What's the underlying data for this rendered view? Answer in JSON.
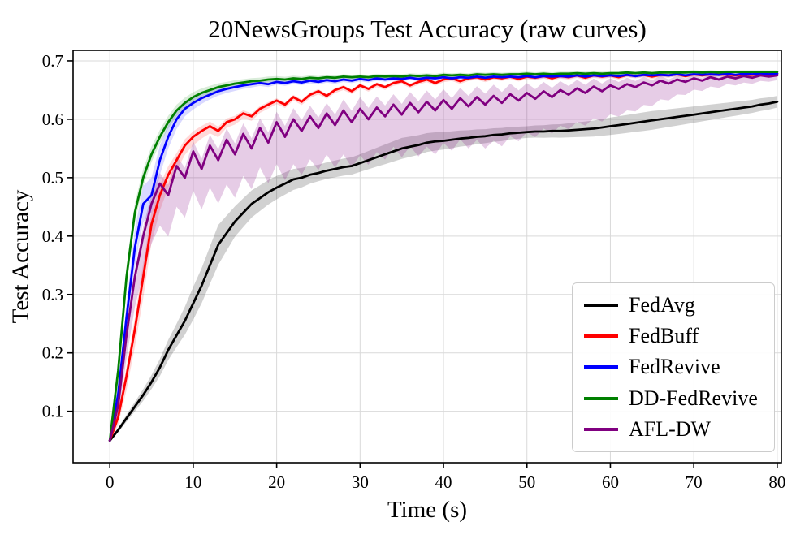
{
  "chart_data": {
    "type": "line",
    "title": "20NewsGroups Test Accuracy (raw curves)",
    "xlabel": "Time (s)",
    "ylabel": "Test Accuracy",
    "xlim": [
      -4.4,
      80.5
    ],
    "ylim": [
      0.012,
      0.718
    ],
    "x_ticks": [
      0,
      10,
      20,
      30,
      40,
      50,
      60,
      70,
      80
    ],
    "y_ticks": [
      0.1,
      0.2,
      0.3,
      0.4,
      0.5,
      0.6,
      0.7
    ],
    "grid": true,
    "legend_position": "lower right",
    "x": [
      0,
      1,
      2,
      3,
      4,
      5,
      6,
      7,
      8,
      9,
      10,
      11,
      12,
      13,
      14,
      15,
      16,
      17,
      18,
      19,
      20,
      21,
      22,
      23,
      24,
      25,
      26,
      27,
      28,
      29,
      30,
      31,
      32,
      33,
      34,
      35,
      36,
      37,
      38,
      39,
      40,
      41,
      42,
      43,
      44,
      45,
      46,
      47,
      48,
      49,
      50,
      51,
      52,
      53,
      54,
      55,
      56,
      57,
      58,
      59,
      60,
      61,
      62,
      63,
      64,
      65,
      66,
      67,
      68,
      69,
      70,
      71,
      72,
      73,
      74,
      75,
      76,
      77,
      78,
      79,
      80
    ],
    "series": [
      {
        "id": "fedavg",
        "name": "FedAvg",
        "color": "#000000",
        "band_opacity": 0.18,
        "band_down_frac": 0.5,
        "values": [
          0.05,
          0.068,
          0.088,
          0.108,
          0.128,
          0.15,
          0.175,
          0.205,
          0.23,
          0.255,
          0.285,
          0.315,
          0.35,
          0.385,
          0.405,
          0.425,
          0.44,
          0.455,
          0.465,
          0.475,
          0.483,
          0.49,
          0.497,
          0.5,
          0.505,
          0.508,
          0.512,
          0.515,
          0.518,
          0.52,
          0.525,
          0.53,
          0.535,
          0.54,
          0.545,
          0.55,
          0.553,
          0.556,
          0.56,
          0.562,
          0.563,
          0.565,
          0.567,
          0.568,
          0.57,
          0.571,
          0.573,
          0.574,
          0.576,
          0.577,
          0.578,
          0.579,
          0.579,
          0.58,
          0.58,
          0.581,
          0.582,
          0.583,
          0.584,
          0.586,
          0.588,
          0.59,
          0.592,
          0.594,
          0.596,
          0.598,
          0.6,
          0.602,
          0.604,
          0.606,
          0.608,
          0.61,
          0.612,
          0.614,
          0.616,
          0.618,
          0.62,
          0.622,
          0.625,
          0.627,
          0.63
        ],
        "band": [
          [
            0,
            0.002
          ],
          [
            5,
            0.012
          ],
          [
            8,
            0.02
          ],
          [
            10,
            0.028
          ],
          [
            13,
            0.034
          ],
          [
            15,
            0.026
          ],
          [
            18,
            0.022
          ],
          [
            22,
            0.018
          ],
          [
            25,
            0.014
          ],
          [
            30,
            0.015
          ],
          [
            35,
            0.018
          ],
          [
            40,
            0.015
          ],
          [
            45,
            0.012
          ],
          [
            50,
            0.01
          ],
          [
            55,
            0.012
          ],
          [
            60,
            0.015
          ],
          [
            65,
            0.016
          ],
          [
            70,
            0.014
          ],
          [
            75,
            0.012
          ],
          [
            80,
            0.01
          ]
        ]
      },
      {
        "id": "fedbuff",
        "name": "FedBuff",
        "color": "#ff0000",
        "band_opacity": 0.15,
        "band_down_frac": 0.6,
        "values": [
          0.05,
          0.09,
          0.16,
          0.24,
          0.33,
          0.42,
          0.47,
          0.505,
          0.53,
          0.555,
          0.57,
          0.58,
          0.588,
          0.58,
          0.595,
          0.6,
          0.61,
          0.605,
          0.618,
          0.625,
          0.632,
          0.625,
          0.638,
          0.63,
          0.642,
          0.648,
          0.64,
          0.65,
          0.655,
          0.648,
          0.658,
          0.652,
          0.66,
          0.655,
          0.662,
          0.665,
          0.658,
          0.664,
          0.668,
          0.662,
          0.668,
          0.67,
          0.665,
          0.67,
          0.672,
          0.668,
          0.672,
          0.67,
          0.673,
          0.669,
          0.673,
          0.671,
          0.674,
          0.67,
          0.674,
          0.672,
          0.675,
          0.671,
          0.675,
          0.673,
          0.675,
          0.672,
          0.676,
          0.674,
          0.676,
          0.673,
          0.676,
          0.675,
          0.677,
          0.674,
          0.677,
          0.675,
          0.677,
          0.676,
          0.677,
          0.675,
          0.677,
          0.676,
          0.678,
          0.677,
          0.678
        ],
        "band": [
          [
            0,
            0.002
          ],
          [
            2,
            0.02
          ],
          [
            4,
            0.03
          ],
          [
            6,
            0.022
          ],
          [
            8,
            0.015
          ],
          [
            10,
            0.012
          ],
          [
            14,
            0.008
          ],
          [
            20,
            0.005
          ],
          [
            30,
            0.004
          ],
          [
            80,
            0.003
          ]
        ]
      },
      {
        "id": "fedrevive",
        "name": "FedRevive",
        "color": "#0000ff",
        "band_opacity": 0.15,
        "band_down_frac": 0.5,
        "values": [
          0.05,
          0.13,
          0.26,
          0.38,
          0.455,
          0.47,
          0.53,
          0.57,
          0.6,
          0.618,
          0.628,
          0.636,
          0.642,
          0.648,
          0.652,
          0.655,
          0.658,
          0.66,
          0.662,
          0.66,
          0.664,
          0.662,
          0.665,
          0.663,
          0.666,
          0.664,
          0.667,
          0.665,
          0.668,
          0.666,
          0.669,
          0.667,
          0.67,
          0.668,
          0.67,
          0.669,
          0.671,
          0.669,
          0.671,
          0.67,
          0.672,
          0.67,
          0.672,
          0.671,
          0.673,
          0.671,
          0.673,
          0.672,
          0.673,
          0.672,
          0.674,
          0.672,
          0.674,
          0.673,
          0.674,
          0.673,
          0.675,
          0.673,
          0.675,
          0.674,
          0.675,
          0.674,
          0.676,
          0.674,
          0.676,
          0.675,
          0.676,
          0.675,
          0.677,
          0.675,
          0.677,
          0.676,
          0.677,
          0.676,
          0.678,
          0.676,
          0.678,
          0.677,
          0.678,
          0.677,
          0.678
        ],
        "band": [
          [
            0,
            0.002
          ],
          [
            2,
            0.025
          ],
          [
            3,
            0.032
          ],
          [
            5,
            0.03
          ],
          [
            7,
            0.02
          ],
          [
            9,
            0.013
          ],
          [
            12,
            0.008
          ],
          [
            18,
            0.005
          ],
          [
            30,
            0.004
          ],
          [
            80,
            0.003
          ]
        ]
      },
      {
        "id": "dd-fedrevive",
        "name": "DD-FedRevive",
        "color": "#008000",
        "band_opacity": 0.15,
        "band_down_frac": 0.5,
        "values": [
          0.05,
          0.17,
          0.33,
          0.44,
          0.5,
          0.54,
          0.57,
          0.595,
          0.615,
          0.628,
          0.638,
          0.645,
          0.65,
          0.655,
          0.658,
          0.661,
          0.663,
          0.665,
          0.666,
          0.668,
          0.669,
          0.668,
          0.67,
          0.669,
          0.671,
          0.67,
          0.672,
          0.671,
          0.673,
          0.672,
          0.673,
          0.672,
          0.674,
          0.673,
          0.674,
          0.673,
          0.675,
          0.674,
          0.675,
          0.674,
          0.676,
          0.675,
          0.676,
          0.675,
          0.677,
          0.676,
          0.677,
          0.676,
          0.677,
          0.677,
          0.678,
          0.677,
          0.678,
          0.677,
          0.678,
          0.678,
          0.679,
          0.678,
          0.679,
          0.678,
          0.679,
          0.679,
          0.68,
          0.679,
          0.68,
          0.679,
          0.68,
          0.68,
          0.68,
          0.68,
          0.681,
          0.68,
          0.681,
          0.68,
          0.681,
          0.681,
          0.681,
          0.681,
          0.681,
          0.681,
          0.681
        ],
        "band": [
          [
            0,
            0.002
          ],
          [
            2,
            0.018
          ],
          [
            4,
            0.015
          ],
          [
            6,
            0.012
          ],
          [
            9,
            0.009
          ],
          [
            14,
            0.006
          ],
          [
            25,
            0.004
          ],
          [
            80,
            0.003
          ]
        ]
      },
      {
        "id": "afl-dw",
        "name": "AFL-DW",
        "color": "#800080",
        "band_opacity": 0.2,
        "band_down_frac": 0.8,
        "values": [
          0.05,
          0.11,
          0.23,
          0.33,
          0.4,
          0.455,
          0.49,
          0.47,
          0.52,
          0.5,
          0.545,
          0.515,
          0.555,
          0.53,
          0.565,
          0.54,
          0.575,
          0.55,
          0.585,
          0.56,
          0.595,
          0.57,
          0.6,
          0.58,
          0.605,
          0.585,
          0.61,
          0.59,
          0.615,
          0.595,
          0.618,
          0.6,
          0.62,
          0.605,
          0.625,
          0.608,
          0.628,
          0.612,
          0.63,
          0.615,
          0.633,
          0.618,
          0.636,
          0.622,
          0.638,
          0.625,
          0.64,
          0.628,
          0.643,
          0.632,
          0.645,
          0.635,
          0.648,
          0.638,
          0.65,
          0.642,
          0.653,
          0.645,
          0.656,
          0.648,
          0.658,
          0.652,
          0.66,
          0.655,
          0.663,
          0.658,
          0.666,
          0.661,
          0.668,
          0.664,
          0.67,
          0.666,
          0.672,
          0.668,
          0.673,
          0.67,
          0.674,
          0.671,
          0.675,
          0.673,
          0.675
        ],
        "band": [
          [
            0,
            0.003
          ],
          [
            2,
            0.025
          ],
          [
            4,
            0.04
          ],
          [
            6,
            0.045
          ],
          [
            10,
            0.042
          ],
          [
            14,
            0.048
          ],
          [
            18,
            0.042
          ],
          [
            22,
            0.048
          ],
          [
            26,
            0.044
          ],
          [
            30,
            0.05
          ],
          [
            34,
            0.045
          ],
          [
            38,
            0.048
          ],
          [
            42,
            0.044
          ],
          [
            46,
            0.048
          ],
          [
            50,
            0.042
          ],
          [
            54,
            0.038
          ],
          [
            58,
            0.034
          ],
          [
            62,
            0.028
          ],
          [
            66,
            0.02
          ],
          [
            70,
            0.012
          ],
          [
            74,
            0.008
          ],
          [
            80,
            0.005
          ]
        ]
      }
    ]
  }
}
